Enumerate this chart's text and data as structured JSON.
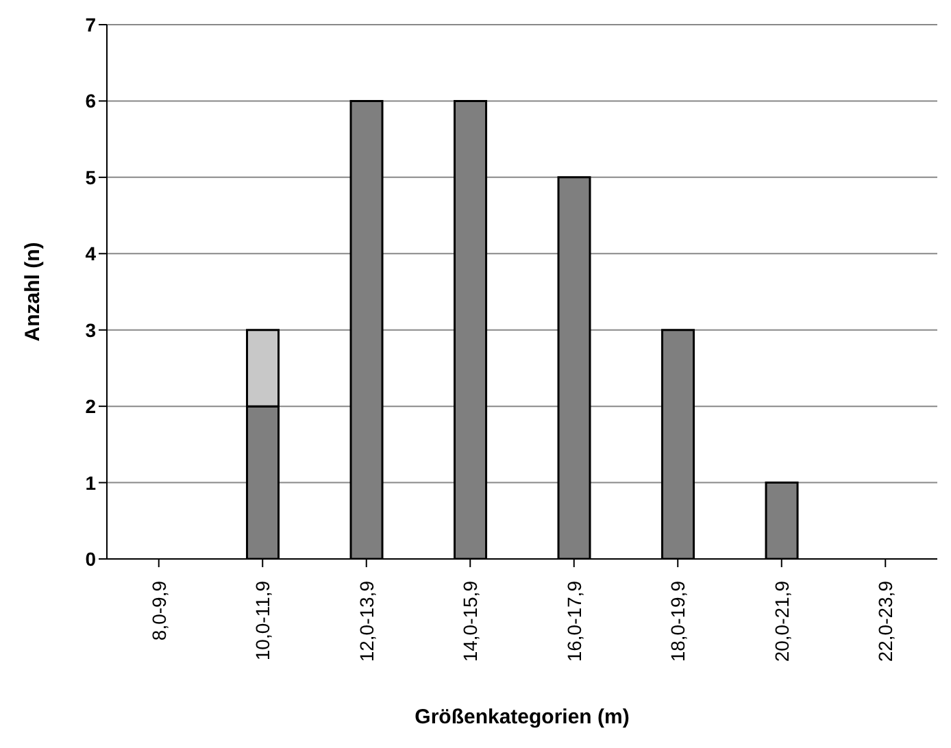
{
  "chart_data": {
    "type": "bar",
    "stacked": true,
    "xlabel": "Größenkategorien (m)",
    "ylabel": "Anzahl (n)",
    "categories": [
      "8,0-9,9",
      "10,0-11,9",
      "12,0-13,9",
      "14,0-15,9",
      "16,0-17,9",
      "18,0-19,9",
      "20,0-21,9",
      "22,0-23,9"
    ],
    "series": [
      {
        "color": "#7f7f7f",
        "values": [
          0,
          2,
          6,
          6,
          5,
          3,
          1,
          0
        ]
      },
      {
        "color": "#c8c8c8",
        "values": [
          null,
          1,
          null,
          null,
          null,
          null,
          null,
          null
        ]
      }
    ],
    "ylim": [
      0,
      7
    ],
    "yticks": [
      0,
      1,
      2,
      3,
      4,
      5,
      6,
      7
    ],
    "grid": "y",
    "legend": false
  }
}
